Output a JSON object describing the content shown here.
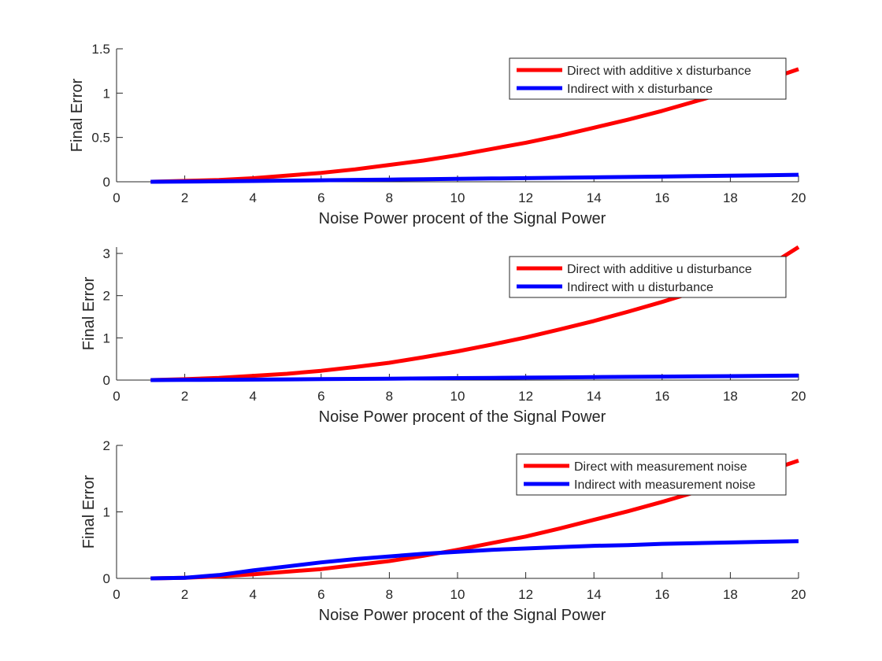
{
  "chart_data": [
    {
      "type": "line",
      "title": "",
      "xlabel": "Noise Power procent of the Signal Power",
      "ylabel": "Final Error",
      "xlim": [
        0,
        20
      ],
      "ylim": [
        0,
        1.5
      ],
      "xticks": [
        0,
        2,
        4,
        6,
        8,
        10,
        12,
        14,
        16,
        18,
        20
      ],
      "xtick_labels": [
        "0",
        "2",
        "4",
        "6",
        "8",
        "10",
        "12",
        "14",
        "16",
        "18",
        "20"
      ],
      "yticks": [
        0,
        0.5,
        1,
        1.5
      ],
      "ytick_labels": [
        "0",
        "0.5",
        "1",
        "1.5"
      ],
      "grid": false,
      "legend": "top-right",
      "x": [
        1,
        2,
        3,
        4,
        5,
        6,
        7,
        8,
        9,
        10,
        11,
        12,
        13,
        14,
        15,
        16,
        17,
        18,
        19,
        20
      ],
      "series": [
        {
          "name": "Direct with additive x disturbance",
          "color": "#ff0000",
          "values": [
            0.0,
            0.01,
            0.02,
            0.04,
            0.07,
            0.1,
            0.14,
            0.19,
            0.24,
            0.3,
            0.37,
            0.44,
            0.52,
            0.61,
            0.7,
            0.8,
            0.91,
            1.02,
            1.14,
            1.27
          ]
        },
        {
          "name": "Indirect with x disturbance",
          "color": "#0000ff",
          "values": [
            0.0,
            0.002,
            0.005,
            0.009,
            0.013,
            0.017,
            0.021,
            0.025,
            0.029,
            0.033,
            0.037,
            0.041,
            0.045,
            0.05,
            0.054,
            0.059,
            0.064,
            0.069,
            0.074,
            0.079
          ]
        }
      ]
    },
    {
      "type": "line",
      "title": "",
      "xlabel": "Noise Power procent of the Signal Power",
      "ylabel": "Final Error",
      "xlim": [
        0,
        20
      ],
      "ylim": [
        0,
        3.15
      ],
      "xticks": [
        0,
        2,
        4,
        6,
        8,
        10,
        12,
        14,
        16,
        18,
        20
      ],
      "xtick_labels": [
        "0",
        "2",
        "4",
        "6",
        "8",
        "10",
        "12",
        "14",
        "16",
        "18",
        "20"
      ],
      "yticks": [
        0,
        1,
        2,
        3
      ],
      "ytick_labels": [
        "0",
        "1",
        "2",
        "3"
      ],
      "grid": false,
      "legend": "top-right",
      "x": [
        1,
        2,
        3,
        4,
        5,
        6,
        7,
        8,
        9,
        10,
        11,
        12,
        13,
        14,
        15,
        16,
        17,
        18,
        19,
        20
      ],
      "series": [
        {
          "name": "Direct with additive u disturbance",
          "color": "#ff0000",
          "values": [
            0.0,
            0.02,
            0.05,
            0.1,
            0.15,
            0.22,
            0.31,
            0.41,
            0.54,
            0.68,
            0.84,
            1.01,
            1.2,
            1.4,
            1.62,
            1.85,
            2.1,
            2.36,
            2.64,
            3.15
          ]
        },
        {
          "name": "Indirect with u disturbance",
          "color": "#0000ff",
          "values": [
            0.0,
            0.003,
            0.007,
            0.012,
            0.017,
            0.022,
            0.028,
            0.034,
            0.04,
            0.046,
            0.052,
            0.058,
            0.064,
            0.07,
            0.076,
            0.082,
            0.088,
            0.094,
            0.1,
            0.106
          ]
        }
      ]
    },
    {
      "type": "line",
      "title": "",
      "xlabel": "Noise Power procent of the Signal Power",
      "ylabel": "Final Error",
      "xlim": [
        0,
        20
      ],
      "ylim": [
        0,
        2
      ],
      "xticks": [
        0,
        2,
        4,
        6,
        8,
        10,
        12,
        14,
        16,
        18,
        20
      ],
      "xtick_labels": [
        "0",
        "2",
        "4",
        "6",
        "8",
        "10",
        "12",
        "14",
        "16",
        "18",
        "20"
      ],
      "yticks": [
        0,
        1,
        2
      ],
      "ytick_labels": [
        "0",
        "1",
        "2"
      ],
      "grid": false,
      "legend": "top-right",
      "x": [
        1,
        2,
        3,
        4,
        5,
        6,
        7,
        8,
        9,
        10,
        11,
        12,
        13,
        14,
        15,
        16,
        17,
        18,
        19,
        20
      ],
      "series": [
        {
          "name": "Direct with measurement noise",
          "color": "#ff0000",
          "values": [
            0.0,
            0.01,
            0.03,
            0.06,
            0.1,
            0.14,
            0.2,
            0.26,
            0.34,
            0.43,
            0.53,
            0.63,
            0.75,
            0.88,
            1.01,
            1.15,
            1.3,
            1.45,
            1.6,
            1.77
          ]
        },
        {
          "name": "Indirect with measurement noise",
          "color": "#0000ff",
          "values": [
            0.0,
            0.01,
            0.05,
            0.12,
            0.18,
            0.24,
            0.29,
            0.33,
            0.37,
            0.4,
            0.43,
            0.45,
            0.47,
            0.49,
            0.5,
            0.52,
            0.53,
            0.54,
            0.55,
            0.56
          ]
        }
      ]
    }
  ]
}
